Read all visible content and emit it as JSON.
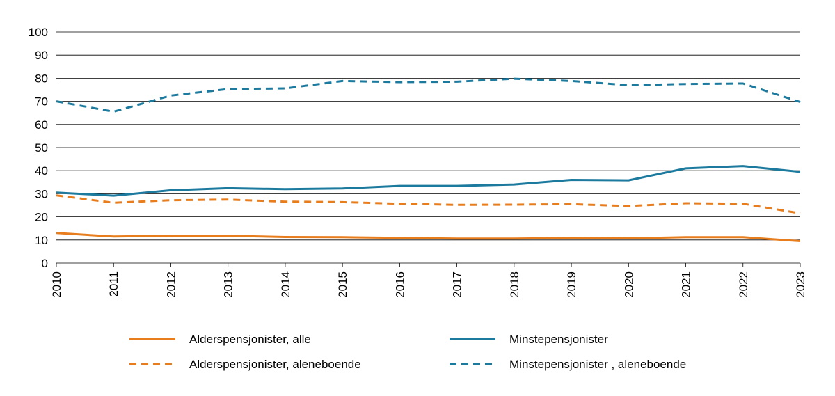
{
  "chart_data": {
    "type": "line",
    "title": "",
    "xlabel": "",
    "ylabel": "",
    "x": [
      "2010",
      "2011",
      "2012",
      "2013",
      "2014",
      "2015",
      "2016",
      "2017",
      "2018",
      "2019",
      "2020",
      "2021",
      "2022",
      "2023"
    ],
    "ylim": [
      0,
      100
    ],
    "yticks": [
      0,
      10,
      20,
      30,
      40,
      50,
      60,
      70,
      80,
      90,
      100
    ],
    "grid": true,
    "legend_position": "bottom",
    "series": [
      {
        "name": "Alderspensjonister, alle",
        "color": "#e87d1e",
        "dash": "solid",
        "values": [
          13,
          11.5,
          11.8,
          11.8,
          11.3,
          11.2,
          10.9,
          10.6,
          10.6,
          10.9,
          10.7,
          11.2,
          11.2,
          9.5
        ]
      },
      {
        "name": "Minstepensjonister",
        "color": "#1b7a9e",
        "dash": "solid",
        "values": [
          30.5,
          29.2,
          31.5,
          32.4,
          32,
          32.3,
          33.4,
          33.4,
          34,
          36,
          35.8,
          41,
          42,
          39.5
        ]
      },
      {
        "name": "Alderspensjonister, aleneboende",
        "color": "#e87d1e",
        "dash": "dashed",
        "values": [
          29.3,
          26.1,
          27.2,
          27.5,
          26.6,
          26.4,
          25.7,
          25.2,
          25.3,
          25.5,
          24.7,
          25.9,
          25.7,
          21.5
        ]
      },
      {
        "name": "Minstepensjonister , aleneboende",
        "color": "#1b7a9e",
        "dash": "dashed",
        "values": [
          70,
          65.5,
          72.5,
          75.3,
          75.6,
          78.8,
          78.3,
          78.5,
          79.8,
          78.8,
          77,
          77.5,
          77.7,
          69.7
        ]
      }
    ]
  }
}
